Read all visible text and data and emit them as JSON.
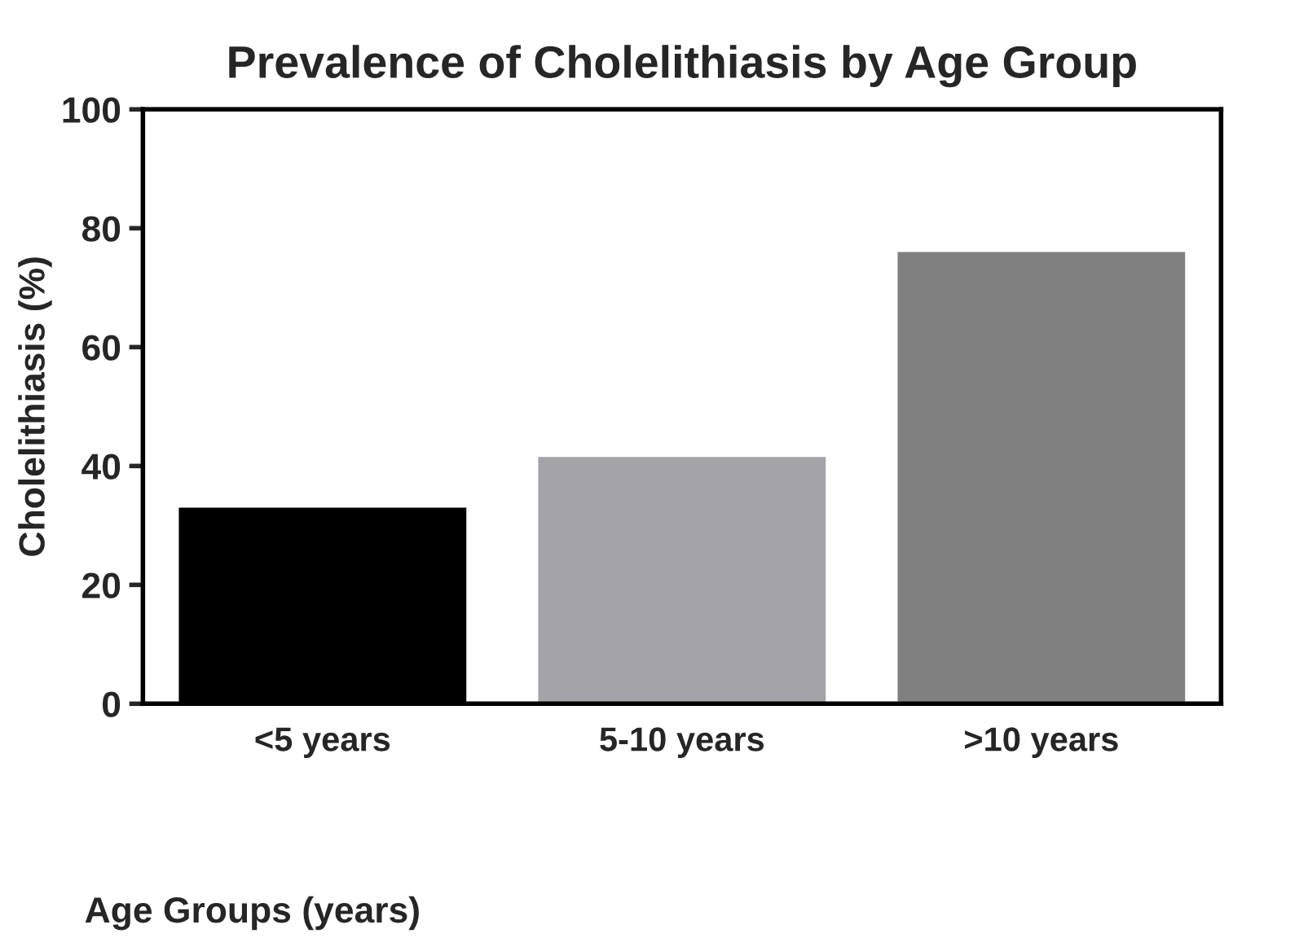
{
  "chart_data": {
    "type": "bar",
    "title": "Prevalence of Cholelithiasis by Age Group",
    "xlabel": "Age Groups (years)",
    "ylabel": "Cholelithiasis (%)",
    "categories": [
      "<5 years",
      "5-10 years",
      ">10 years"
    ],
    "values": [
      33,
      41.5,
      76
    ],
    "colors": [
      "#000000",
      "#a3a3a8",
      "#808080"
    ],
    "ylim": [
      0,
      100
    ],
    "yticks": [
      0,
      20,
      40,
      60,
      80,
      100
    ],
    "grid": false,
    "legend": false
  }
}
